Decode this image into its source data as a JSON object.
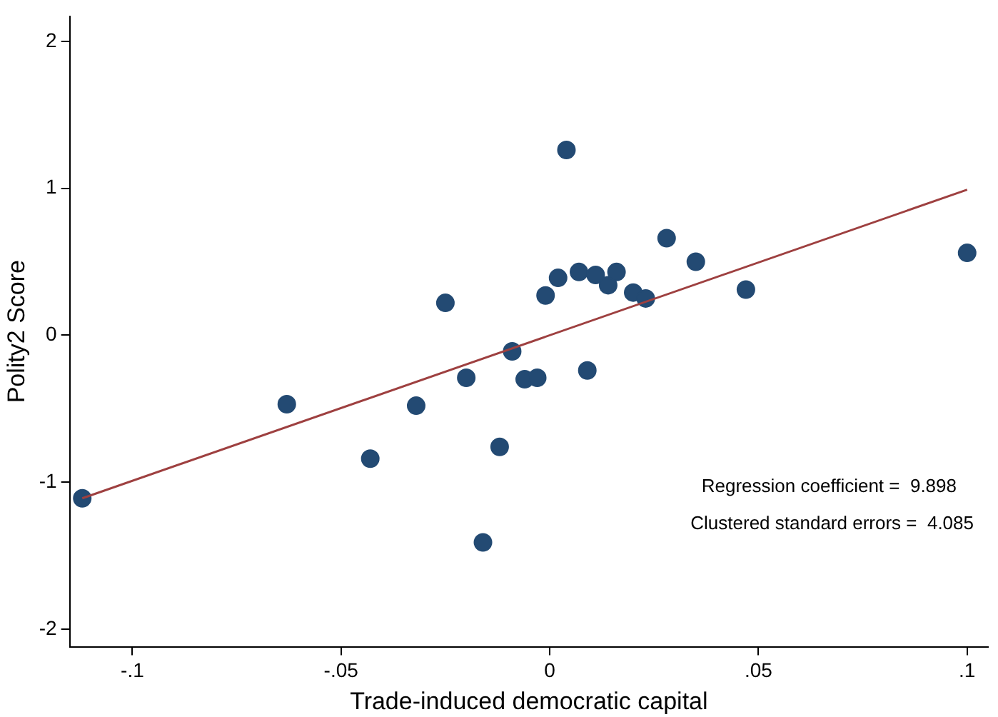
{
  "chart_data": {
    "type": "scatter",
    "xlabel": "Trade-induced democratic capital",
    "ylabel": "Polity2 Score",
    "xlim": [
      -0.115,
      0.105
    ],
    "ylim": [
      -2.12,
      2.17
    ],
    "xticks": [
      {
        "value": -0.1,
        "label": "-.1"
      },
      {
        "value": -0.05,
        "label": "-.05"
      },
      0,
      {
        "value": 0.05,
        "label": ".05"
      },
      {
        "value": 0.1,
        "label": ".1"
      }
    ],
    "yticks": [
      -2,
      -1,
      0,
      1,
      2
    ],
    "grid": false,
    "legend": false,
    "marker": "circle",
    "series": [
      {
        "type": "scatter",
        "color": "#234a73",
        "x": [
          -0.112,
          -0.063,
          -0.043,
          -0.032,
          -0.025,
          -0.02,
          -0.016,
          -0.012,
          -0.009,
          -0.006,
          -0.003,
          -0.001,
          0.002,
          0.004,
          0.007,
          0.009,
          0.011,
          0.014,
          0.016,
          0.02,
          0.023,
          0.028,
          0.035,
          0.047,
          0.1
        ],
        "values": [
          -1.11,
          -0.47,
          -0.84,
          -0.48,
          0.22,
          -0.29,
          -1.41,
          -0.76,
          -0.11,
          -0.3,
          -0.29,
          0.27,
          0.39,
          1.26,
          0.43,
          -0.24,
          0.41,
          0.34,
          0.43,
          0.29,
          0.25,
          0.66,
          0.5,
          0.31,
          0.56
        ]
      },
      {
        "type": "line",
        "color": "#9e4040",
        "marker": "none",
        "x": [
          -0.112,
          0.1
        ],
        "values": [
          -1.11,
          0.99
        ]
      }
    ],
    "annotations": [
      "Regression coefficient =  9.898",
      "Clustered standard errors =  4.085"
    ]
  }
}
